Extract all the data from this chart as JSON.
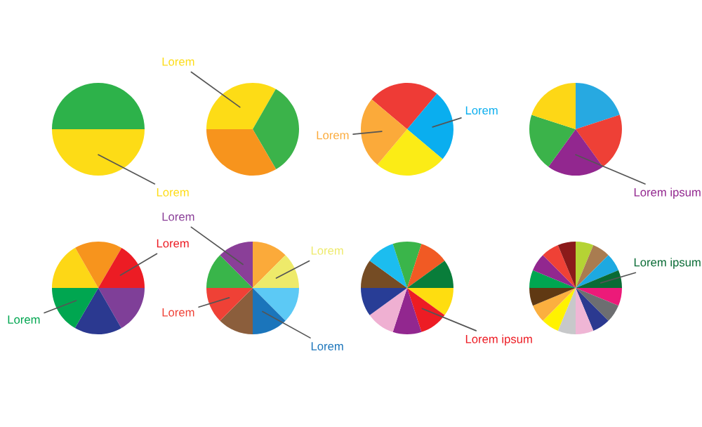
{
  "chart_data": [
    {
      "type": "pie",
      "categories": [
        null,
        "Lorem"
      ],
      "values": [
        50,
        50
      ],
      "colors": [
        "#2db24a",
        "#fddc16"
      ]
    },
    {
      "type": "pie",
      "categories": [
        "Lorem",
        null,
        null
      ],
      "values": [
        33.3,
        33.3,
        33.4
      ],
      "colors": [
        "#fddc16",
        "#3bb34a",
        "#f7941d"
      ]
    },
    {
      "type": "pie",
      "categories": [
        null,
        "Lorem",
        null,
        "Lorem"
      ],
      "values": [
        25,
        25,
        25,
        25
      ],
      "colors": [
        "#ee3b36",
        "#0aaeef",
        "#fbec16",
        "#fbaa3a"
      ]
    },
    {
      "type": "pie",
      "categories": [
        null,
        null,
        "Lorem ipsum",
        null,
        null
      ],
      "values": [
        20,
        20,
        20,
        20,
        20
      ],
      "colors": [
        "#27a9e1",
        "#ee4036",
        "#92278f",
        "#3bb34a",
        "#fdd716"
      ]
    },
    {
      "type": "pie",
      "categories": [
        null,
        null,
        "Lorem",
        null,
        null,
        "Lorem"
      ],
      "values": [
        16.7,
        16.7,
        16.6,
        16.7,
        16.7,
        16.6
      ],
      "colors": [
        "#fdd716",
        "#f7941d",
        "#ec1c24",
        "#7f3f98",
        "#2b3990",
        "#00a650"
      ]
    },
    {
      "type": "pie",
      "categories": [
        null,
        "Lorem",
        null,
        "Lorem",
        null,
        "Lorem",
        null,
        "Lorem"
      ],
      "values": [
        12.5,
        12.5,
        12.5,
        12.5,
        12.5,
        12.5,
        12.5,
        12.5
      ],
      "colors": [
        "#fbaa3a",
        "#eeea6a",
        "#5cc9f5",
        "#1b75bb",
        "#8b5e3c",
        "#ef4136",
        "#39b54a",
        "#8a3f98"
      ]
    },
    {
      "type": "pie",
      "categories": [
        null,
        "Lorem ipsum",
        null,
        null,
        null,
        null,
        null,
        null,
        null,
        null
      ],
      "values": [
        10,
        10,
        10,
        10,
        10,
        10,
        10,
        10,
        10,
        10
      ],
      "colors": [
        "#fedd10",
        "#ed1c24",
        "#92278f",
        "#efb0d2",
        "#283d96",
        "#754c24",
        "#1cbdef",
        "#3ab54a",
        "#f15a24",
        "#097d3a"
      ]
    },
    {
      "type": "pie",
      "categories": [
        null,
        null,
        null,
        "Lorem ipsum",
        null,
        null,
        null,
        null,
        null,
        null,
        null,
        null,
        null,
        null,
        null,
        null
      ],
      "values": [
        6.25,
        6.25,
        6.25,
        6.25,
        6.25,
        6.25,
        6.25,
        6.25,
        6.25,
        6.25,
        6.25,
        6.25,
        6.25,
        6.25,
        6.25,
        6.25
      ],
      "colors": [
        "#b5d334",
        "#a97c50",
        "#1da9e1",
        "#096b35",
        "#ec1a79",
        "#6d6e71",
        "#2b3990",
        "#efb6d5",
        "#c7c8ca",
        "#fff200",
        "#fbaf3f",
        "#603913",
        "#00a651",
        "#92278f",
        "#ef4136",
        "#8b1a1a"
      ]
    }
  ]
}
